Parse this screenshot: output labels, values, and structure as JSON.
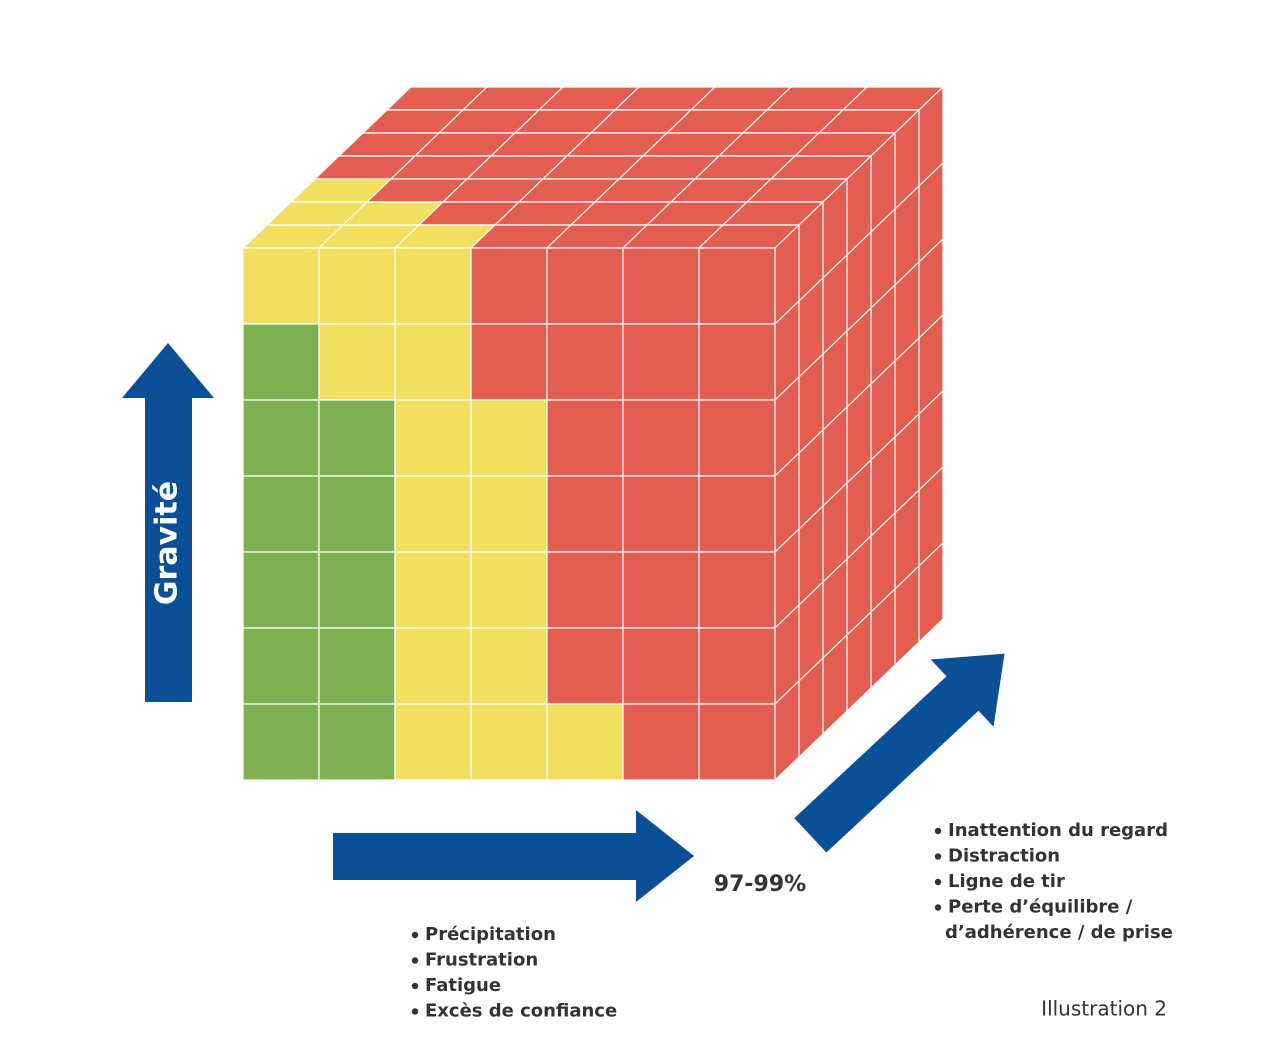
{
  "labels": {
    "vertical_axis": "Gravité",
    "horizontal_axis": "97-99%"
  },
  "lists": {
    "front": [
      "Précipitation",
      "Frustration",
      "Fatigue",
      "Excès de confiance"
    ],
    "right": [
      [
        "Inattention du regard"
      ],
      [
        "Distraction"
      ],
      [
        "Ligne de tir"
      ],
      [
        "Perte d’équilibre /",
        "d’adhérence / de prise"
      ]
    ]
  },
  "caption": "Illustration 2"
}
